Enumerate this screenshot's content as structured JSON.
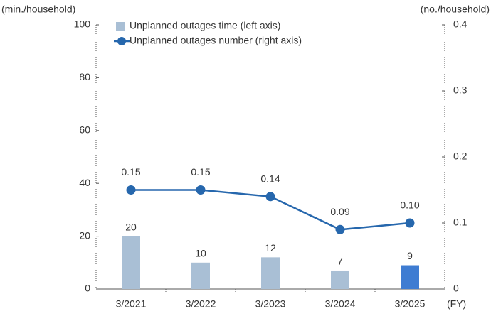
{
  "chart_data": {
    "type": "bar_line",
    "y_label": "(min./household)",
    "y2_label": "(no./household)",
    "x_label": "(FY)",
    "categories": [
      "3/2021",
      "3/2022",
      "3/2023",
      "3/2024",
      "3/2025"
    ],
    "series": [
      {
        "name": "Unplanned outages time (left axis)",
        "type": "bar",
        "color": "#a9bfd5",
        "colors": [
          "#a9bfd5",
          "#a9bfd5",
          "#a9bfd5",
          "#a9bfd5",
          "#3e7cd2"
        ],
        "values": [
          20,
          10,
          12,
          7,
          9
        ]
      },
      {
        "name": "Unplanned outages number (right axis)",
        "type": "line",
        "axis": "y2",
        "color": "#2667ad",
        "values": [
          0.15,
          0.15,
          0.14,
          0.09,
          0.1
        ],
        "value_labels": [
          "0.15",
          "0.15",
          "0.14",
          "0.09",
          "0.10"
        ]
      }
    ],
    "ylim": [
      0,
      100
    ],
    "yticks": [
      0,
      20,
      40,
      60,
      80,
      100
    ],
    "y2lim": [
      0,
      0.4
    ],
    "y2ticks": [
      0,
      0.1,
      0.2,
      0.3,
      0.4
    ],
    "legend": "top-left"
  }
}
